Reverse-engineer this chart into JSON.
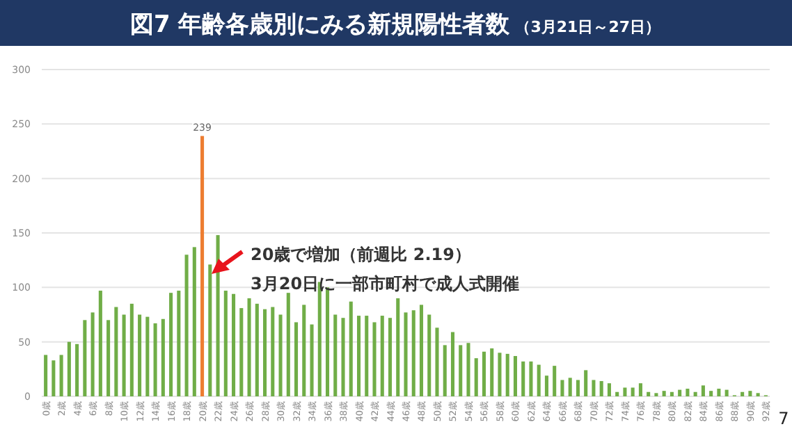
{
  "chart_data": {
    "type": "bar",
    "title": "図7 年齢各歳別にみる新規陽性者数",
    "subtitle": "（3月21日～27日）",
    "categories": [
      "0歳",
      null,
      "2歳",
      null,
      "4歳",
      null,
      "6歳",
      null,
      "8歳",
      null,
      "10歳",
      null,
      "12歳",
      null,
      "14歳",
      null,
      "16歳",
      null,
      "18歳",
      null,
      "20歳",
      null,
      "22歳",
      null,
      "24歳",
      null,
      "26歳",
      null,
      "28歳",
      null,
      "30歳",
      null,
      "32歳",
      null,
      "34歳",
      null,
      "36歳",
      null,
      "38歳",
      null,
      "40歳",
      null,
      "42歳",
      null,
      "44歳",
      null,
      "46歳",
      null,
      "48歳",
      null,
      "50歳",
      null,
      "52歳",
      null,
      "54歳",
      null,
      "56歳",
      null,
      "58歳",
      null,
      "60歳",
      null,
      "62歳",
      null,
      "64歳",
      null,
      "66歳",
      null,
      "68歳",
      null,
      "70歳",
      null,
      "72歳",
      null,
      "74歳",
      null,
      "76歳",
      null,
      "78歳",
      null,
      "80歳",
      null,
      "82歳",
      null,
      "84歳",
      null,
      "86歳",
      null,
      "88歳",
      null,
      "90歳",
      null,
      "92歳"
    ],
    "values": [
      38,
      33,
      38,
      50,
      48,
      70,
      77,
      97,
      70,
      82,
      75,
      85,
      75,
      73,
      67,
      71,
      95,
      97,
      130,
      137,
      239,
      121,
      148,
      97,
      94,
      81,
      90,
      85,
      80,
      82,
      75,
      95,
      68,
      84,
      66,
      105,
      100,
      75,
      72,
      87,
      74,
      74,
      68,
      74,
      72,
      90,
      77,
      79,
      84,
      75,
      63,
      47,
      59,
      47,
      49,
      35,
      41,
      44,
      40,
      39,
      37,
      32,
      32,
      29,
      19,
      28,
      15,
      17,
      15,
      24,
      15,
      14,
      12,
      4,
      8,
      8,
      12,
      4,
      3,
      5,
      4,
      6,
      7,
      4,
      10,
      5,
      7,
      6,
      1,
      4,
      5,
      3,
      1
    ],
    "colors": [
      "#70ad47",
      "#70ad47",
      "#70ad47",
      "#70ad47",
      "#70ad47",
      "#70ad47",
      "#70ad47",
      "#70ad47",
      "#70ad47",
      "#70ad47",
      "#70ad47",
      "#70ad47",
      "#70ad47",
      "#70ad47",
      "#70ad47",
      "#70ad47",
      "#70ad47",
      "#70ad47",
      "#70ad47",
      "#70ad47",
      "#ed7d31",
      "#70ad47",
      "#70ad47",
      "#70ad47",
      "#70ad47",
      "#70ad47",
      "#70ad47",
      "#70ad47",
      "#70ad47",
      "#70ad47",
      "#70ad47",
      "#70ad47",
      "#70ad47",
      "#70ad47",
      "#70ad47",
      "#70ad47",
      "#70ad47",
      "#70ad47",
      "#70ad47",
      "#70ad47",
      "#70ad47",
      "#70ad47",
      "#70ad47",
      "#70ad47",
      "#70ad47",
      "#70ad47",
      "#70ad47",
      "#70ad47",
      "#70ad47",
      "#70ad47",
      "#70ad47",
      "#70ad47",
      "#70ad47",
      "#70ad47",
      "#70ad47",
      "#70ad47",
      "#70ad47",
      "#70ad47",
      "#70ad47",
      "#70ad47",
      "#70ad47",
      "#70ad47",
      "#70ad47",
      "#70ad47",
      "#70ad47",
      "#70ad47",
      "#70ad47",
      "#70ad47",
      "#70ad47",
      "#70ad47",
      "#70ad47",
      "#70ad47",
      "#70ad47",
      "#70ad47",
      "#70ad47",
      "#70ad47",
      "#70ad47",
      "#70ad47",
      "#70ad47",
      "#70ad47",
      "#70ad47",
      "#70ad47",
      "#70ad47",
      "#70ad47",
      "#70ad47",
      "#70ad47",
      "#70ad47",
      "#70ad47",
      "#70ad47",
      "#70ad47",
      "#70ad47",
      "#70ad47",
      "#70ad47"
    ],
    "value_labels": [
      null,
      null,
      null,
      null,
      null,
      null,
      null,
      null,
      null,
      null,
      null,
      null,
      null,
      null,
      null,
      null,
      null,
      null,
      null,
      null,
      "239",
      null,
      null,
      null,
      null,
      null,
      null,
      null,
      null,
      null,
      null,
      null,
      null,
      null,
      null,
      null,
      null,
      null,
      null,
      null,
      null,
      null,
      null,
      null,
      null,
      null,
      null,
      null,
      null,
      null,
      null,
      null,
      null,
      null,
      null,
      null,
      null,
      null,
      null,
      null,
      null,
      null,
      null,
      null,
      null,
      null,
      null,
      null,
      null,
      null,
      null,
      null,
      null,
      null,
      null,
      null,
      null,
      null,
      null,
      null,
      null,
      null,
      null,
      null,
      null,
      null,
      null,
      null,
      null,
      null,
      null,
      null,
      null
    ],
    "ylim": [
      0,
      300
    ],
    "yticks": [
      0,
      50,
      100,
      150,
      200,
      250,
      300
    ],
    "grid": "y",
    "annotations": [
      "20歳で増加（前週比 2.19）",
      "3月20日に一部市町村で成人式開催",
      "7"
    ]
  }
}
